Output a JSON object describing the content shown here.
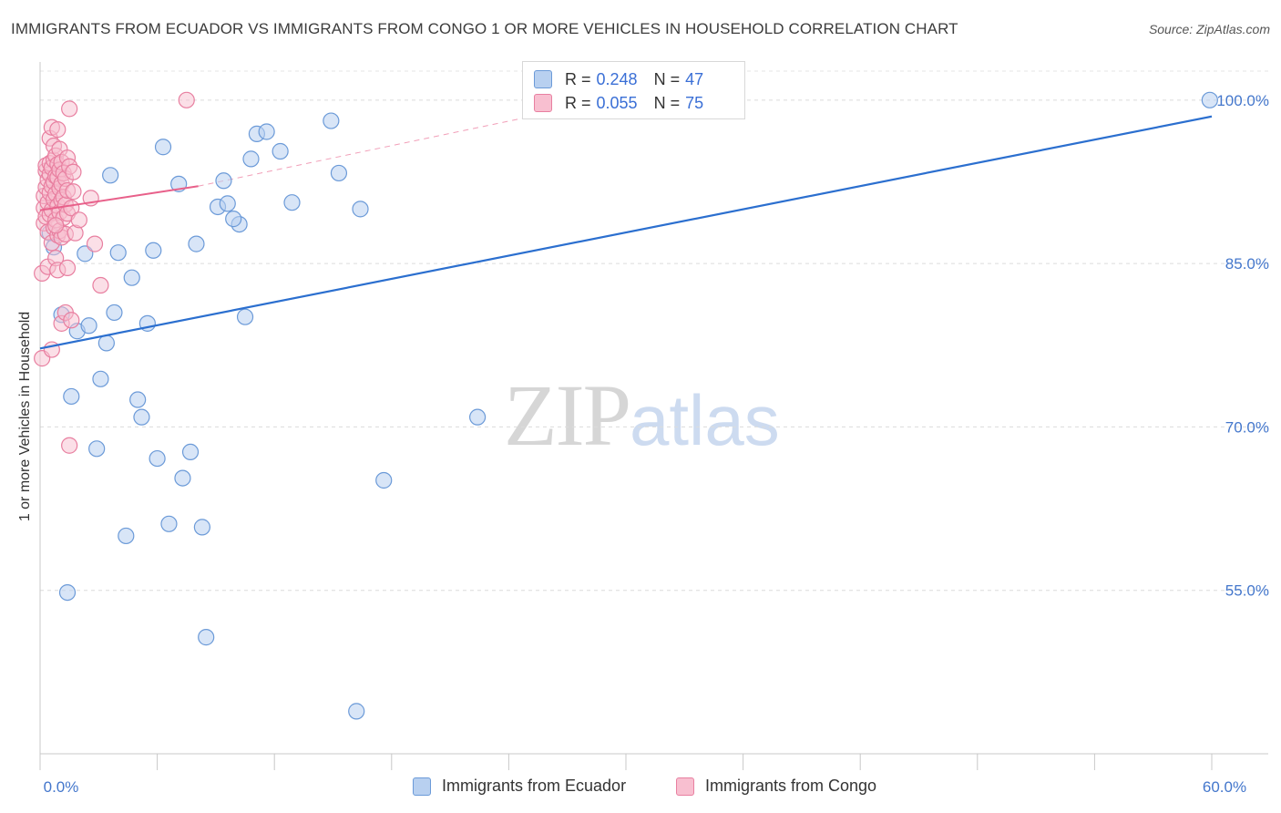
{
  "title": "IMMIGRANTS FROM ECUADOR VS IMMIGRANTS FROM CONGO 1 OR MORE VEHICLES IN HOUSEHOLD CORRELATION CHART",
  "source": "Source: ZipAtlas.com",
  "watermark": {
    "zip": "ZIP",
    "atlas": "atlas"
  },
  "legend": {
    "rows": [
      {
        "r_label": "R =",
        "r_value": "0.248",
        "n_label": "N =",
        "n_value": "47"
      },
      {
        "r_label": "R =",
        "r_value": "0.055",
        "n_label": "N =",
        "n_value": "75"
      }
    ]
  },
  "bottom_legend": {
    "items": [
      {
        "label": "Immigrants from Ecuador"
      },
      {
        "label": "Immigrants from Congo"
      }
    ]
  },
  "colors": {
    "ecuador_fill": "#b8d0f0",
    "ecuador_stroke": "#6b9ad8",
    "ecuador_line": "#2b6fcf",
    "congo_fill": "#f8bfd0",
    "congo_stroke": "#e87fa0",
    "congo_line": "#e8608a",
    "tick_text": "#4477cc"
  },
  "chart_data": {
    "type": "scatter",
    "title": "IMMIGRANTS FROM ECUADOR VS IMMIGRANTS FROM CONGO 1 OR MORE VEHICLES IN HOUSEHOLD CORRELATION CHART",
    "xlabel": "",
    "ylabel": "1 or more Vehicles in Household",
    "xlim": [
      0,
      60
    ],
    "ylim": [
      40,
      103.5
    ],
    "x_ticks": [
      0,
      6,
      12,
      18,
      24,
      30,
      36,
      42,
      48,
      54,
      60
    ],
    "x_tick_labels": [
      {
        "value": 0,
        "label": "0.0%"
      },
      {
        "value": 60,
        "label": "60.0%"
      }
    ],
    "y_ticks": [
      {
        "value": 55,
        "label": "55.0%"
      },
      {
        "value": 70,
        "label": "70.0%"
      },
      {
        "value": 85,
        "label": "85.0%"
      },
      {
        "value": 100,
        "label": "100.0%"
      }
    ],
    "grid": true,
    "legend_position": "top-center",
    "series": [
      {
        "name": "Immigrants from Ecuador",
        "r": 0.248,
        "n": 47,
        "trend": {
          "x": [
            0,
            60
          ],
          "y": [
            77.2,
            98.5
          ],
          "style": "solid"
        },
        "points": [
          [
            0.5,
            87.8
          ],
          [
            0.7,
            86.5
          ],
          [
            1.1,
            80.3
          ],
          [
            1.4,
            54.8
          ],
          [
            1.6,
            72.8
          ],
          [
            1.9,
            78.8
          ],
          [
            2.3,
            85.9
          ],
          [
            2.5,
            79.3
          ],
          [
            2.9,
            68.0
          ],
          [
            3.1,
            74.4
          ],
          [
            3.4,
            77.7
          ],
          [
            3.8,
            80.5
          ],
          [
            4.0,
            86.0
          ],
          [
            4.4,
            60.0
          ],
          [
            4.7,
            83.7
          ],
          [
            5.0,
            72.5
          ],
          [
            5.2,
            70.9
          ],
          [
            5.5,
            79.5
          ],
          [
            5.8,
            86.2
          ],
          [
            6.0,
            67.1
          ],
          [
            6.3,
            95.7
          ],
          [
            6.6,
            61.1
          ],
          [
            7.1,
            92.3
          ],
          [
            7.3,
            65.3
          ],
          [
            7.7,
            67.7
          ],
          [
            8.0,
            86.8
          ],
          [
            8.3,
            60.8
          ],
          [
            8.5,
            50.7
          ],
          [
            9.1,
            90.2
          ],
          [
            9.4,
            92.6
          ],
          [
            9.6,
            90.5
          ],
          [
            10.2,
            88.6
          ],
          [
            10.5,
            80.1
          ],
          [
            10.8,
            94.6
          ],
          [
            11.1,
            96.9
          ],
          [
            11.6,
            97.1
          ],
          [
            12.3,
            95.3
          ],
          [
            12.9,
            90.6
          ],
          [
            14.9,
            98.1
          ],
          [
            15.3,
            93.3
          ],
          [
            16.2,
            43.9
          ],
          [
            16.4,
            90.0
          ],
          [
            17.6,
            65.1
          ],
          [
            22.4,
            70.9
          ],
          [
            59.9,
            100.0
          ],
          [
            3.6,
            93.1
          ],
          [
            9.9,
            89.1
          ]
        ]
      },
      {
        "name": "Immigrants from Congo",
        "r": 0.055,
        "n": 75,
        "trend": {
          "x": [
            0,
            8.1
          ],
          "y": [
            89.9,
            92.1
          ],
          "style": "solid",
          "extension": {
            "x": [
              8.1,
              27
            ],
            "y": [
              92.1,
              99.2
            ],
            "style": "dashed"
          }
        },
        "points": [
          [
            0.1,
            76.3
          ],
          [
            0.1,
            84.1
          ],
          [
            0.2,
            88.7
          ],
          [
            0.2,
            90.1
          ],
          [
            0.2,
            91.2
          ],
          [
            0.3,
            89.3
          ],
          [
            0.3,
            92.0
          ],
          [
            0.3,
            93.5
          ],
          [
            0.3,
            94.0
          ],
          [
            0.4,
            84.7
          ],
          [
            0.4,
            87.9
          ],
          [
            0.4,
            90.6
          ],
          [
            0.4,
            92.7
          ],
          [
            0.5,
            89.5
          ],
          [
            0.5,
            91.5
          ],
          [
            0.5,
            93.2
          ],
          [
            0.5,
            94.2
          ],
          [
            0.5,
            96.5
          ],
          [
            0.6,
            77.1
          ],
          [
            0.6,
            86.9
          ],
          [
            0.6,
            89.9
          ],
          [
            0.6,
            92.1
          ],
          [
            0.6,
            93.8
          ],
          [
            0.6,
            97.5
          ],
          [
            0.7,
            88.3
          ],
          [
            0.7,
            90.9
          ],
          [
            0.7,
            92.5
          ],
          [
            0.7,
            94.5
          ],
          [
            0.7,
            95.8
          ],
          [
            0.8,
            85.5
          ],
          [
            0.8,
            89.0
          ],
          [
            0.8,
            91.4
          ],
          [
            0.8,
            93.0
          ],
          [
            0.8,
            94.9
          ],
          [
            0.9,
            84.4
          ],
          [
            0.9,
            87.6
          ],
          [
            0.9,
            90.3
          ],
          [
            0.9,
            92.9
          ],
          [
            0.9,
            94.1
          ],
          [
            0.9,
            97.3
          ],
          [
            1.0,
            88.0
          ],
          [
            1.0,
            89.7
          ],
          [
            1.0,
            91.9
          ],
          [
            1.0,
            93.6
          ],
          [
            1.0,
            95.5
          ],
          [
            1.1,
            79.5
          ],
          [
            1.1,
            87.4
          ],
          [
            1.1,
            90.8
          ],
          [
            1.1,
            92.3
          ],
          [
            1.1,
            94.3
          ],
          [
            1.2,
            89.2
          ],
          [
            1.2,
            91.1
          ],
          [
            1.2,
            93.3
          ],
          [
            1.3,
            80.5
          ],
          [
            1.3,
            87.7
          ],
          [
            1.3,
            90.4
          ],
          [
            1.3,
            92.8
          ],
          [
            1.4,
            84.6
          ],
          [
            1.4,
            89.6
          ],
          [
            1.4,
            91.7
          ],
          [
            1.4,
            94.7
          ],
          [
            1.5,
            68.3
          ],
          [
            1.5,
            93.9
          ],
          [
            1.5,
            99.2
          ],
          [
            1.6,
            79.8
          ],
          [
            1.6,
            90.1
          ],
          [
            1.7,
            91.6
          ],
          [
            1.7,
            93.4
          ],
          [
            1.8,
            87.8
          ],
          [
            2.0,
            89.0
          ],
          [
            2.6,
            91.0
          ],
          [
            2.8,
            86.8
          ],
          [
            3.1,
            83.0
          ],
          [
            7.5,
            100.0
          ],
          [
            0.8,
            88.5
          ]
        ]
      }
    ]
  }
}
